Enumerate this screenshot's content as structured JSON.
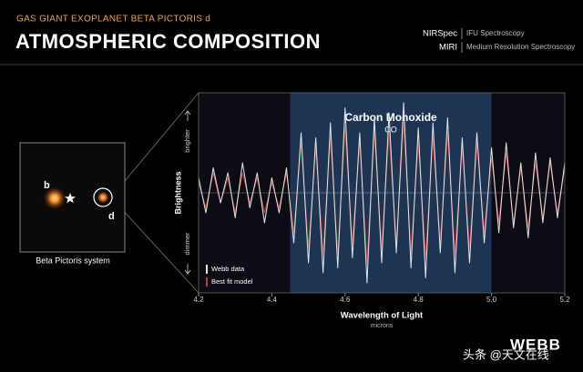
{
  "header": {
    "kicker": "GAS GIANT EXOPLANET BETA PICTORIS d",
    "title": "ATMOSPHERIC COMPOSITION",
    "instruments": [
      {
        "name": "NIRSpec",
        "mode": "IFU Spectroscopy"
      },
      {
        "name": "MIRI",
        "mode": "Medium Resolution Spectroscopy"
      }
    ]
  },
  "image_panel": {
    "labels": [
      "b",
      "d"
    ],
    "caption": "Beta Pictoris system"
  },
  "chart_data": {
    "type": "line",
    "highlight": {
      "label": "Carbon Monoxide",
      "sublabel": "CO",
      "xlim": [
        4.45,
        5.0
      ],
      "color": "#1d3553"
    },
    "x": [
      4.2,
      4.22,
      4.24,
      4.26,
      4.28,
      4.3,
      4.32,
      4.34,
      4.36,
      4.38,
      4.4,
      4.42,
      4.44,
      4.46,
      4.48,
      4.5,
      4.52,
      4.54,
      4.56,
      4.58,
      4.6,
      4.62,
      4.64,
      4.66,
      4.68,
      4.7,
      4.72,
      4.74,
      4.76,
      4.78,
      4.8,
      4.82,
      4.84,
      4.86,
      4.88,
      4.9,
      4.92,
      4.94,
      4.96,
      4.98,
      5.0,
      5.02,
      5.04,
      5.06,
      5.08,
      5.1,
      5.12,
      5.14,
      5.16,
      5.18,
      5.2
    ],
    "series": [
      {
        "name": "Best fit model",
        "color": "#b5453c",
        "values": [
          0.1,
          -0.15,
          0.2,
          -0.1,
          0.15,
          -0.2,
          0.2,
          -0.1,
          0.15,
          -0.2,
          0.1,
          -0.15,
          0.2,
          -0.4,
          0.5,
          -0.55,
          0.45,
          -0.6,
          0.55,
          -0.6,
          0.65,
          -0.5,
          0.5,
          -0.7,
          0.6,
          -0.55,
          0.6,
          -0.5,
          0.7,
          -0.6,
          0.5,
          -0.65,
          0.55,
          -0.5,
          0.6,
          -0.6,
          0.45,
          -0.55,
          0.5,
          -0.4,
          0.35,
          -0.3,
          0.4,
          -0.3,
          0.25,
          -0.35,
          0.3,
          -0.25,
          0.3,
          -0.2,
          0.25
        ]
      },
      {
        "name": "Webb data",
        "color": "#e6e6e6",
        "values": [
          0.15,
          -0.2,
          0.25,
          -0.1,
          0.2,
          -0.25,
          0.3,
          -0.15,
          0.2,
          -0.3,
          0.15,
          -0.2,
          0.25,
          -0.5,
          0.6,
          -0.7,
          0.55,
          -0.8,
          0.7,
          -0.75,
          0.85,
          -0.65,
          0.6,
          -0.9,
          0.75,
          -0.7,
          0.8,
          -0.6,
          0.9,
          -0.75,
          0.65,
          -0.85,
          0.7,
          -0.6,
          0.75,
          -0.8,
          0.55,
          -0.7,
          0.6,
          -0.5,
          0.45,
          -0.4,
          0.5,
          -0.35,
          0.3,
          -0.45,
          0.4,
          -0.3,
          0.35,
          -0.25,
          0.3
        ]
      }
    ],
    "legend_order": [
      1,
      0
    ],
    "legend": "lower left",
    "xlim": [
      4.2,
      5.2
    ],
    "xticks": [
      4.2,
      4.4,
      4.6,
      4.8,
      {
        "value": 5,
        "label": "5.0"
      },
      5.2
    ],
    "ylim": [
      -1,
      1
    ],
    "x_label": "Wavelength of Light",
    "x_unit": "microns",
    "y_label": "Brightness",
    "y_high": "brighter",
    "y_low": "dimmer"
  },
  "watermark": "头条 @天文在线",
  "logo": "WEBB"
}
